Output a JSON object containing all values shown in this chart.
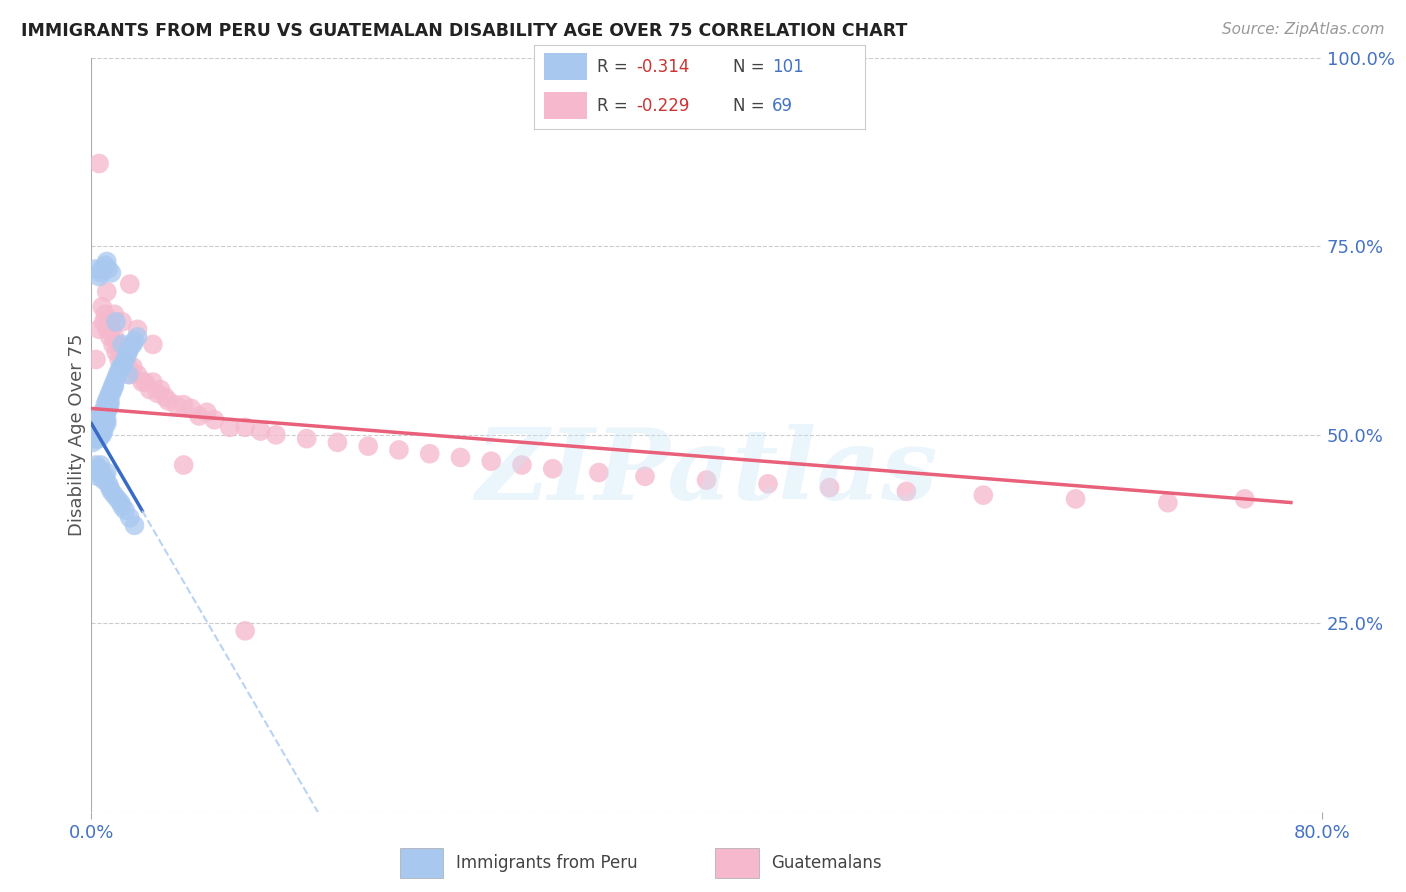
{
  "title": "IMMIGRANTS FROM PERU VS GUATEMALAN DISABILITY AGE OVER 75 CORRELATION CHART",
  "source": "Source: ZipAtlas.com",
  "ylabel": "Disability Age Over 75",
  "xlim": [
    0.0,
    0.8
  ],
  "ylim": [
    0.0,
    1.0
  ],
  "yticks_right": [
    0.0,
    0.25,
    0.5,
    0.75,
    1.0
  ],
  "yticklabels_right": [
    "",
    "25.0%",
    "50.0%",
    "75.0%",
    "100.0%"
  ],
  "blue_color": "#a8c8f0",
  "pink_color": "#f5b8cc",
  "blue_line_color": "#3a6bc4",
  "pink_line_color": "#e8607a",
  "blue_dash_color": "#a8c8f0",
  "background_color": "#ffffff",
  "grid_color": "#cccccc",
  "legend_label_blue": "Immigrants from Peru",
  "legend_label_pink": "Guatemalans",
  "peru_x": [
    0.001,
    0.001,
    0.002,
    0.002,
    0.002,
    0.002,
    0.003,
    0.003,
    0.003,
    0.003,
    0.003,
    0.004,
    0.004,
    0.004,
    0.004,
    0.004,
    0.005,
    0.005,
    0.005,
    0.005,
    0.005,
    0.006,
    0.006,
    0.006,
    0.006,
    0.006,
    0.007,
    0.007,
    0.007,
    0.007,
    0.007,
    0.008,
    0.008,
    0.008,
    0.008,
    0.008,
    0.009,
    0.009,
    0.009,
    0.009,
    0.01,
    0.01,
    0.01,
    0.01,
    0.01,
    0.011,
    0.011,
    0.011,
    0.012,
    0.012,
    0.012,
    0.013,
    0.013,
    0.014,
    0.014,
    0.015,
    0.015,
    0.016,
    0.017,
    0.018,
    0.019,
    0.02,
    0.021,
    0.022,
    0.023,
    0.024,
    0.025,
    0.027,
    0.028,
    0.03,
    0.003,
    0.004,
    0.004,
    0.005,
    0.006,
    0.006,
    0.007,
    0.008,
    0.009,
    0.01,
    0.011,
    0.012,
    0.013,
    0.015,
    0.017,
    0.019,
    0.02,
    0.022,
    0.025,
    0.028,
    0.003,
    0.005,
    0.006,
    0.007,
    0.009,
    0.01,
    0.011,
    0.013,
    0.016,
    0.02,
    0.024
  ],
  "peru_y": [
    0.5,
    0.49,
    0.51,
    0.495,
    0.505,
    0.515,
    0.5,
    0.51,
    0.505,
    0.495,
    0.515,
    0.5,
    0.51,
    0.505,
    0.495,
    0.52,
    0.51,
    0.5,
    0.505,
    0.515,
    0.495,
    0.525,
    0.515,
    0.51,
    0.5,
    0.505,
    0.53,
    0.52,
    0.515,
    0.51,
    0.5,
    0.53,
    0.52,
    0.515,
    0.51,
    0.505,
    0.54,
    0.53,
    0.525,
    0.515,
    0.545,
    0.535,
    0.53,
    0.52,
    0.515,
    0.55,
    0.54,
    0.535,
    0.555,
    0.545,
    0.54,
    0.56,
    0.555,
    0.565,
    0.56,
    0.57,
    0.565,
    0.575,
    0.58,
    0.585,
    0.59,
    0.59,
    0.595,
    0.6,
    0.605,
    0.61,
    0.615,
    0.62,
    0.625,
    0.63,
    0.46,
    0.45,
    0.445,
    0.455,
    0.46,
    0.45,
    0.445,
    0.44,
    0.445,
    0.45,
    0.435,
    0.43,
    0.425,
    0.42,
    0.415,
    0.41,
    0.405,
    0.4,
    0.39,
    0.38,
    0.72,
    0.71,
    0.715,
    0.72,
    0.725,
    0.73,
    0.72,
    0.715,
    0.65,
    0.62,
    0.58
  ],
  "guate_x": [
    0.003,
    0.005,
    0.007,
    0.008,
    0.009,
    0.01,
    0.011,
    0.012,
    0.013,
    0.014,
    0.015,
    0.016,
    0.017,
    0.018,
    0.019,
    0.02,
    0.022,
    0.024,
    0.025,
    0.027,
    0.03,
    0.033,
    0.035,
    0.038,
    0.04,
    0.043,
    0.045,
    0.048,
    0.05,
    0.055,
    0.06,
    0.065,
    0.07,
    0.075,
    0.08,
    0.09,
    0.1,
    0.11,
    0.12,
    0.14,
    0.16,
    0.18,
    0.2,
    0.22,
    0.24,
    0.26,
    0.28,
    0.3,
    0.33,
    0.36,
    0.4,
    0.44,
    0.48,
    0.53,
    0.58,
    0.64,
    0.7,
    0.75,
    0.005,
    0.008,
    0.01,
    0.015,
    0.02,
    0.025,
    0.03,
    0.04,
    0.06,
    0.1
  ],
  "guate_y": [
    0.6,
    0.64,
    0.67,
    0.65,
    0.66,
    0.64,
    0.65,
    0.63,
    0.64,
    0.62,
    0.63,
    0.61,
    0.62,
    0.6,
    0.61,
    0.59,
    0.6,
    0.59,
    0.58,
    0.59,
    0.58,
    0.57,
    0.57,
    0.56,
    0.57,
    0.555,
    0.56,
    0.55,
    0.545,
    0.54,
    0.54,
    0.535,
    0.525,
    0.53,
    0.52,
    0.51,
    0.51,
    0.505,
    0.5,
    0.495,
    0.49,
    0.485,
    0.48,
    0.475,
    0.47,
    0.465,
    0.46,
    0.455,
    0.45,
    0.445,
    0.44,
    0.435,
    0.43,
    0.425,
    0.42,
    0.415,
    0.41,
    0.415,
    0.86,
    0.72,
    0.69,
    0.66,
    0.65,
    0.7,
    0.64,
    0.62,
    0.46,
    0.24
  ]
}
